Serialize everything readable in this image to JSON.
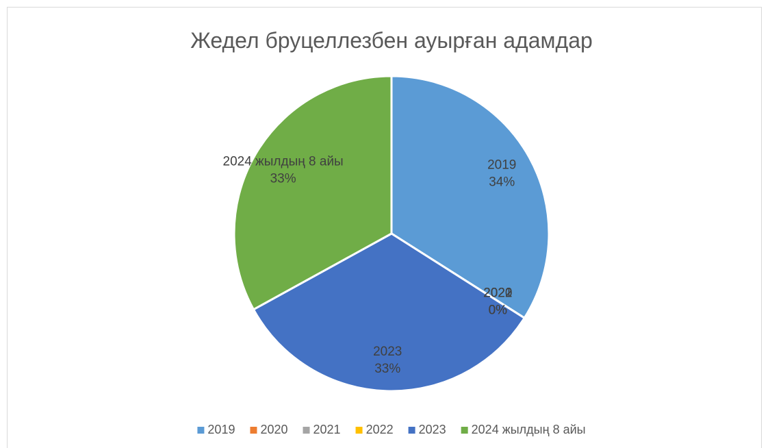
{
  "chart_data": {
    "type": "pie",
    "title": "Жедел бруцеллезбен ауырған адамдар",
    "categories": [
      "2019",
      "2020",
      "2021",
      "2022",
      "2023",
      "2024 жылдың 8 айы"
    ],
    "values": [
      34,
      0,
      0,
      0,
      33,
      33
    ],
    "value_labels": [
      "34%",
      "0%",
      "0%",
      "0%",
      "33%",
      "33%"
    ],
    "colors": [
      "#5b9bd5",
      "#ed7d31",
      "#a5a5a5",
      "#ffc000",
      "#4472c4",
      "#70ad47"
    ],
    "legend": "bottom"
  }
}
